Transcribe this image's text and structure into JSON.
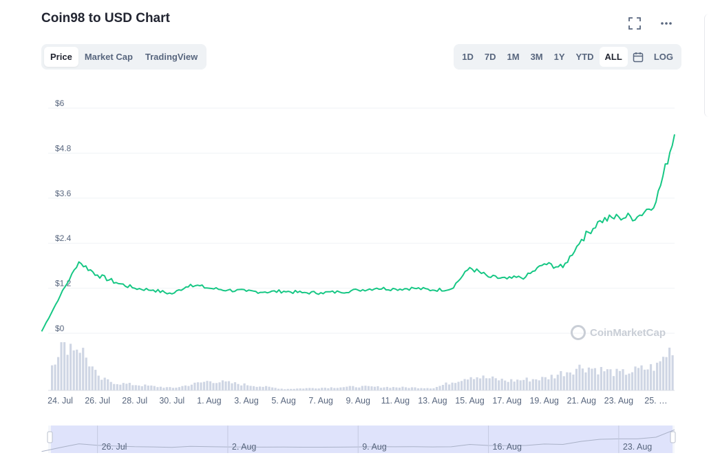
{
  "header": {
    "title": "Coin98 to USD Chart"
  },
  "tabs": [
    {
      "label": "Price",
      "active": true
    },
    {
      "label": "Market Cap",
      "active": false
    },
    {
      "label": "TradingView",
      "active": false
    }
  ],
  "ranges": [
    {
      "label": "1D",
      "active": false
    },
    {
      "label": "7D",
      "active": false
    },
    {
      "label": "1M",
      "active": false
    },
    {
      "label": "3M",
      "active": false
    },
    {
      "label": "1Y",
      "active": false
    },
    {
      "label": "YTD",
      "active": false
    },
    {
      "label": "ALL",
      "active": true
    }
  ],
  "log_label": "LOG",
  "icons": {
    "fullscreen": "fullscreen-icon",
    "more": "more-icon",
    "calendar": "calendar-icon"
  },
  "watermark": "CoinMarketCap",
  "colors": {
    "line": "#16c784",
    "volume": "#cfd6e4",
    "navigator": "#dfe3fb"
  },
  "chart_data": {
    "type": "line",
    "series": [
      {
        "x": [
          "2021-07-23",
          "2021-07-24",
          "2021-07-25",
          "2021-07-26",
          "2021-07-27",
          "2021-07-28",
          "2021-07-29",
          "2021-07-30",
          "2021-07-31",
          "2021-08-01",
          "2021-08-02",
          "2021-08-03",
          "2021-08-04",
          "2021-08-05",
          "2021-08-06",
          "2021-08-07",
          "2021-08-08",
          "2021-08-09",
          "2021-08-10",
          "2021-08-11",
          "2021-08-12",
          "2021-08-13",
          "2021-08-14",
          "2021-08-15",
          "2021-08-16",
          "2021-08-17",
          "2021-08-18",
          "2021-08-19",
          "2021-08-20",
          "2021-08-21",
          "2021-08-22",
          "2021-08-23",
          "2021-08-24",
          "2021-08-25",
          "2021-08-26"
        ],
        "values": [
          0.05,
          1.0,
          1.9,
          1.55,
          1.35,
          1.2,
          1.15,
          1.05,
          1.3,
          1.2,
          1.15,
          1.12,
          1.1,
          1.12,
          1.08,
          1.08,
          1.1,
          1.15,
          1.2,
          1.18,
          1.2,
          1.15,
          1.18,
          1.75,
          1.5,
          1.45,
          1.5,
          1.85,
          1.75,
          2.5,
          3.0,
          3.1,
          3.1,
          3.5,
          5.3
        ]
      }
    ],
    "volume": {
      "x": [
        "2021-07-23",
        "2021-07-24",
        "2021-07-25",
        "2021-07-26",
        "2021-07-27",
        "2021-07-30",
        "2021-08-01",
        "2021-08-05",
        "2021-08-09",
        "2021-08-13",
        "2021-08-15",
        "2021-08-17",
        "2021-08-19",
        "2021-08-21",
        "2021-08-23",
        "2021-08-25",
        "2021-08-26"
      ],
      "values": [
        0.1,
        1.0,
        0.9,
        0.25,
        0.15,
        0.05,
        0.2,
        0.03,
        0.08,
        0.05,
        0.3,
        0.2,
        0.25,
        0.5,
        0.35,
        0.5,
        1.0
      ]
    },
    "ylim": [
      0,
      6
    ],
    "yticks": [
      "$0",
      "$1.2",
      "$2.4",
      "$3.6",
      "$4.8",
      "$6"
    ],
    "xticks": [
      "24. Jul",
      "26. Jul",
      "28. Jul",
      "30. Jul",
      "1. Aug",
      "3. Aug",
      "5. Aug",
      "7. Aug",
      "9. Aug",
      "11. Aug",
      "13. Aug",
      "15. Aug",
      "17. Aug",
      "19. Aug",
      "21. Aug",
      "23. Aug",
      "25. …"
    ],
    "navigator_ticks": [
      "26. Jul",
      "2. Aug",
      "9. Aug",
      "16. Aug",
      "23. Aug"
    ],
    "grid": true,
    "log_scale": false
  }
}
